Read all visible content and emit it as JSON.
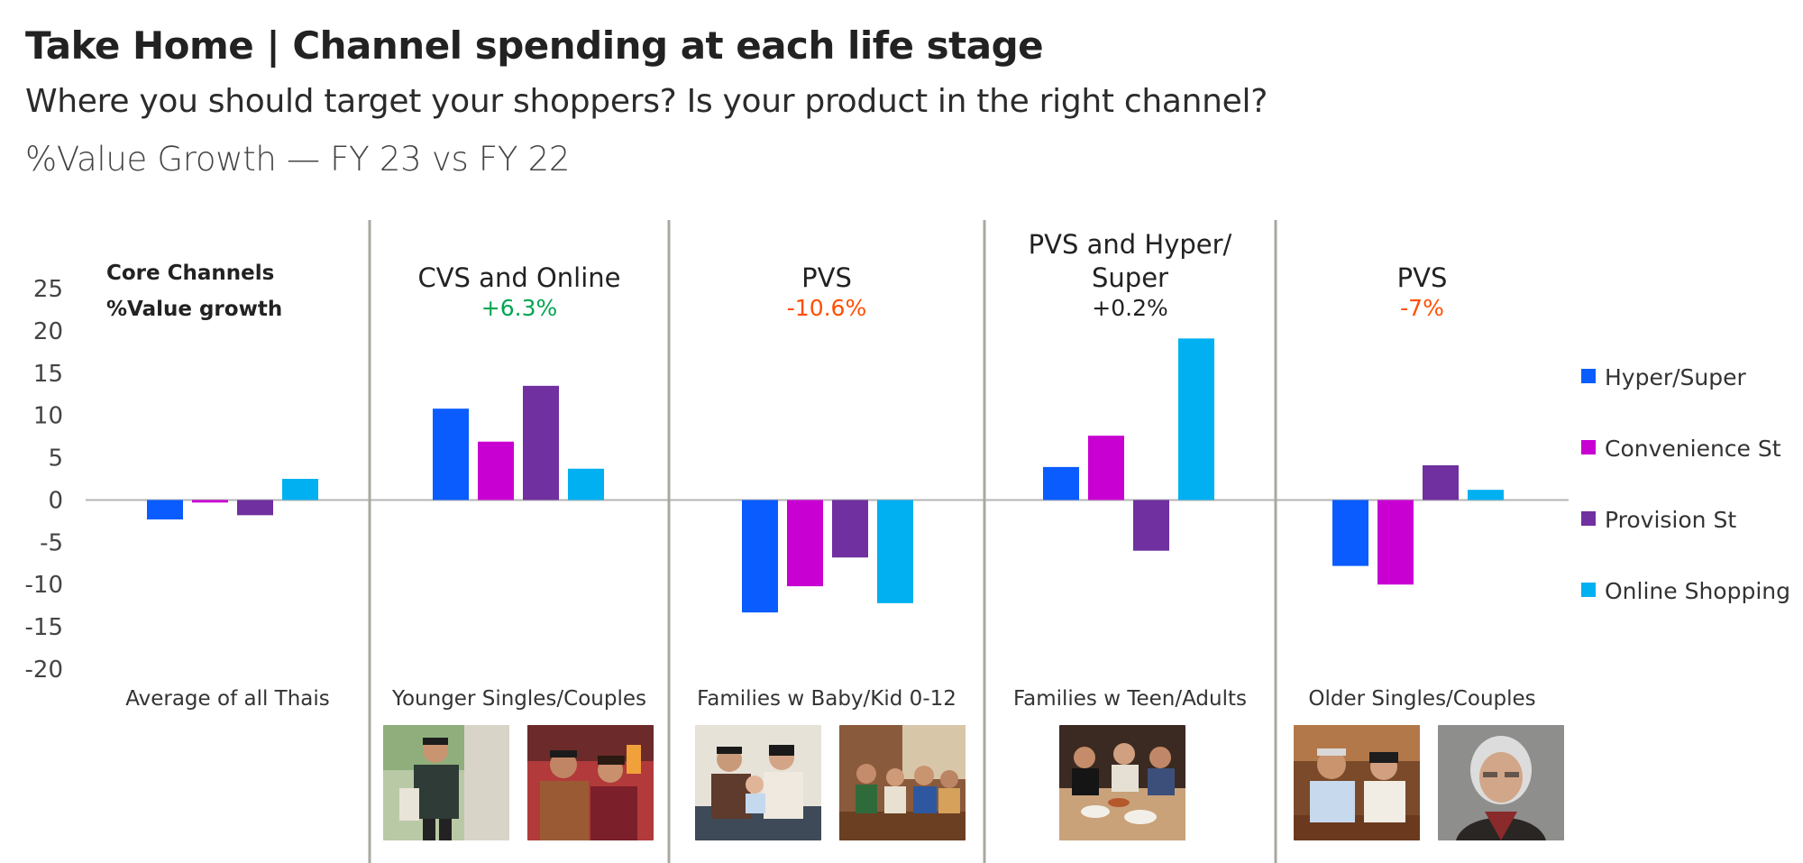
{
  "header": {
    "title": "Take Home  | Channel spending at each life stage",
    "subtitle": "Where you should target your shoppers?  Is your product in the right channel?",
    "metric": "%Value Growth — FY 23 vs FY 22"
  },
  "chart_data": {
    "type": "bar",
    "note_line1": "Core Channels",
    "note_line2": "%Value growth",
    "ylim": [
      -20,
      25
    ],
    "yticks": [
      25,
      20,
      15,
      10,
      5,
      0,
      -5,
      -10,
      -15,
      -20
    ],
    "categories": [
      "Average of all Thais",
      "Younger Singles/Couples",
      "Families w Baby/Kid 0-12",
      "Families w Teen/Adults",
      "Older Singles/Couples"
    ],
    "group_headers": [
      {
        "lines": [],
        "value": ""
      },
      {
        "lines": [
          "CVS and Online"
        ],
        "value": "+6.3%"
      },
      {
        "lines": [
          "PVS"
        ],
        "value": "-10.6%"
      },
      {
        "lines": [
          "PVS and Hyper/",
          "Super"
        ],
        "value": "+0.2%"
      },
      {
        "lines": [
          "PVS"
        ],
        "value": "-7%"
      }
    ],
    "series": [
      {
        "name": "Hyper/Super",
        "color": "#0a5cff",
        "values": [
          -2.3,
          10.8,
          -13.3,
          3.9,
          -7.8
        ]
      },
      {
        "name": "Convenience St",
        "color": "#c800d2",
        "values": [
          -0.3,
          6.9,
          -10.2,
          7.6,
          -10.0
        ]
      },
      {
        "name": "Provision St",
        "color": "#7030a0",
        "values": [
          -1.8,
          13.5,
          -6.8,
          -6.0,
          4.1
        ]
      },
      {
        "name": "Online Shopping",
        "color": "#00b0f0",
        "values": [
          2.5,
          3.7,
          -12.2,
          19.1,
          1.2
        ]
      }
    ],
    "colors": {
      "positive": "#00a651",
      "negative": "#ff4f00",
      "neutral": "#222222",
      "axis": "#b5b5b5",
      "divider": "#a8a8a0"
    },
    "legend_position": "right",
    "grid": false
  },
  "photos": [
    {
      "name": "photo-young-man-phone-icon"
    },
    {
      "name": "photo-young-couple-selfie-icon"
    },
    {
      "name": "photo-family-with-baby-icon"
    },
    {
      "name": "photo-family-at-table-icon"
    },
    {
      "name": "photo-family-dinner-icon"
    },
    {
      "name": "photo-older-couple-icon"
    },
    {
      "name": "photo-older-woman-icon"
    }
  ]
}
